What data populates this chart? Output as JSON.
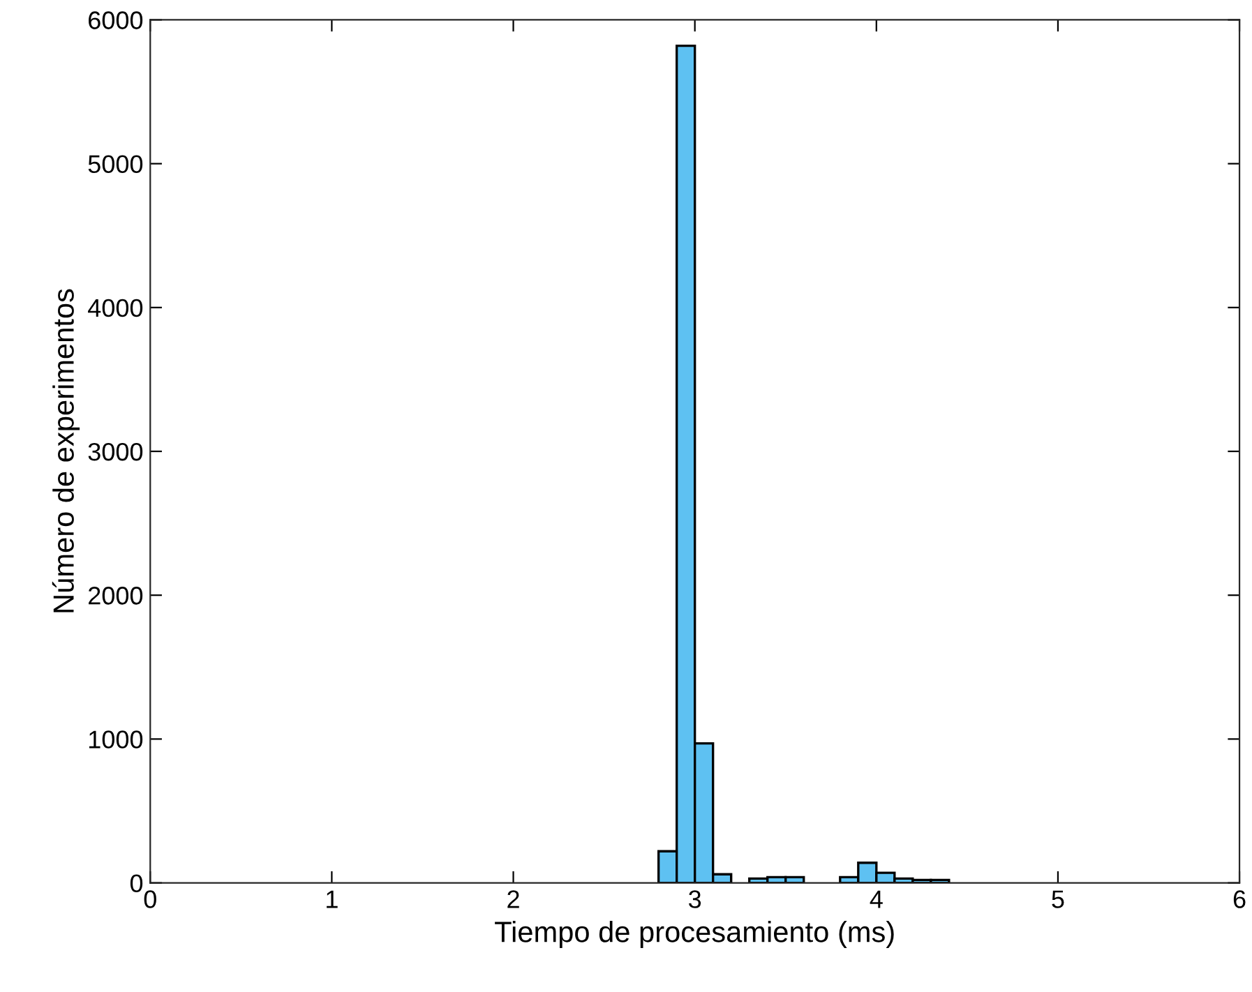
{
  "chart_data": {
    "type": "histogram",
    "xlabel": "Tiempo de procesamiento (ms)",
    "ylabel": "Número de experimentos",
    "bins": [
      2.8,
      2.9,
      3.0,
      3.1,
      3.2,
      3.3,
      3.4,
      3.5,
      3.6,
      3.7,
      3.8,
      3.9,
      4.0,
      4.1,
      4.2,
      4.3,
      4.4,
      4.5
    ],
    "values": [
      220,
      5820,
      970,
      60,
      null,
      30,
      40,
      40,
      null,
      null,
      40,
      140,
      70,
      30,
      20,
      20,
      null
    ],
    "color": "#5ec1f2",
    "xlim": [
      0,
      6
    ],
    "xticks": [
      0,
      1,
      2,
      3,
      4,
      5,
      6
    ],
    "ylim": [
      0,
      6000
    ],
    "yticks": [
      0,
      1000,
      2000,
      3000,
      4000,
      5000,
      6000
    ],
    "grid": false
  }
}
